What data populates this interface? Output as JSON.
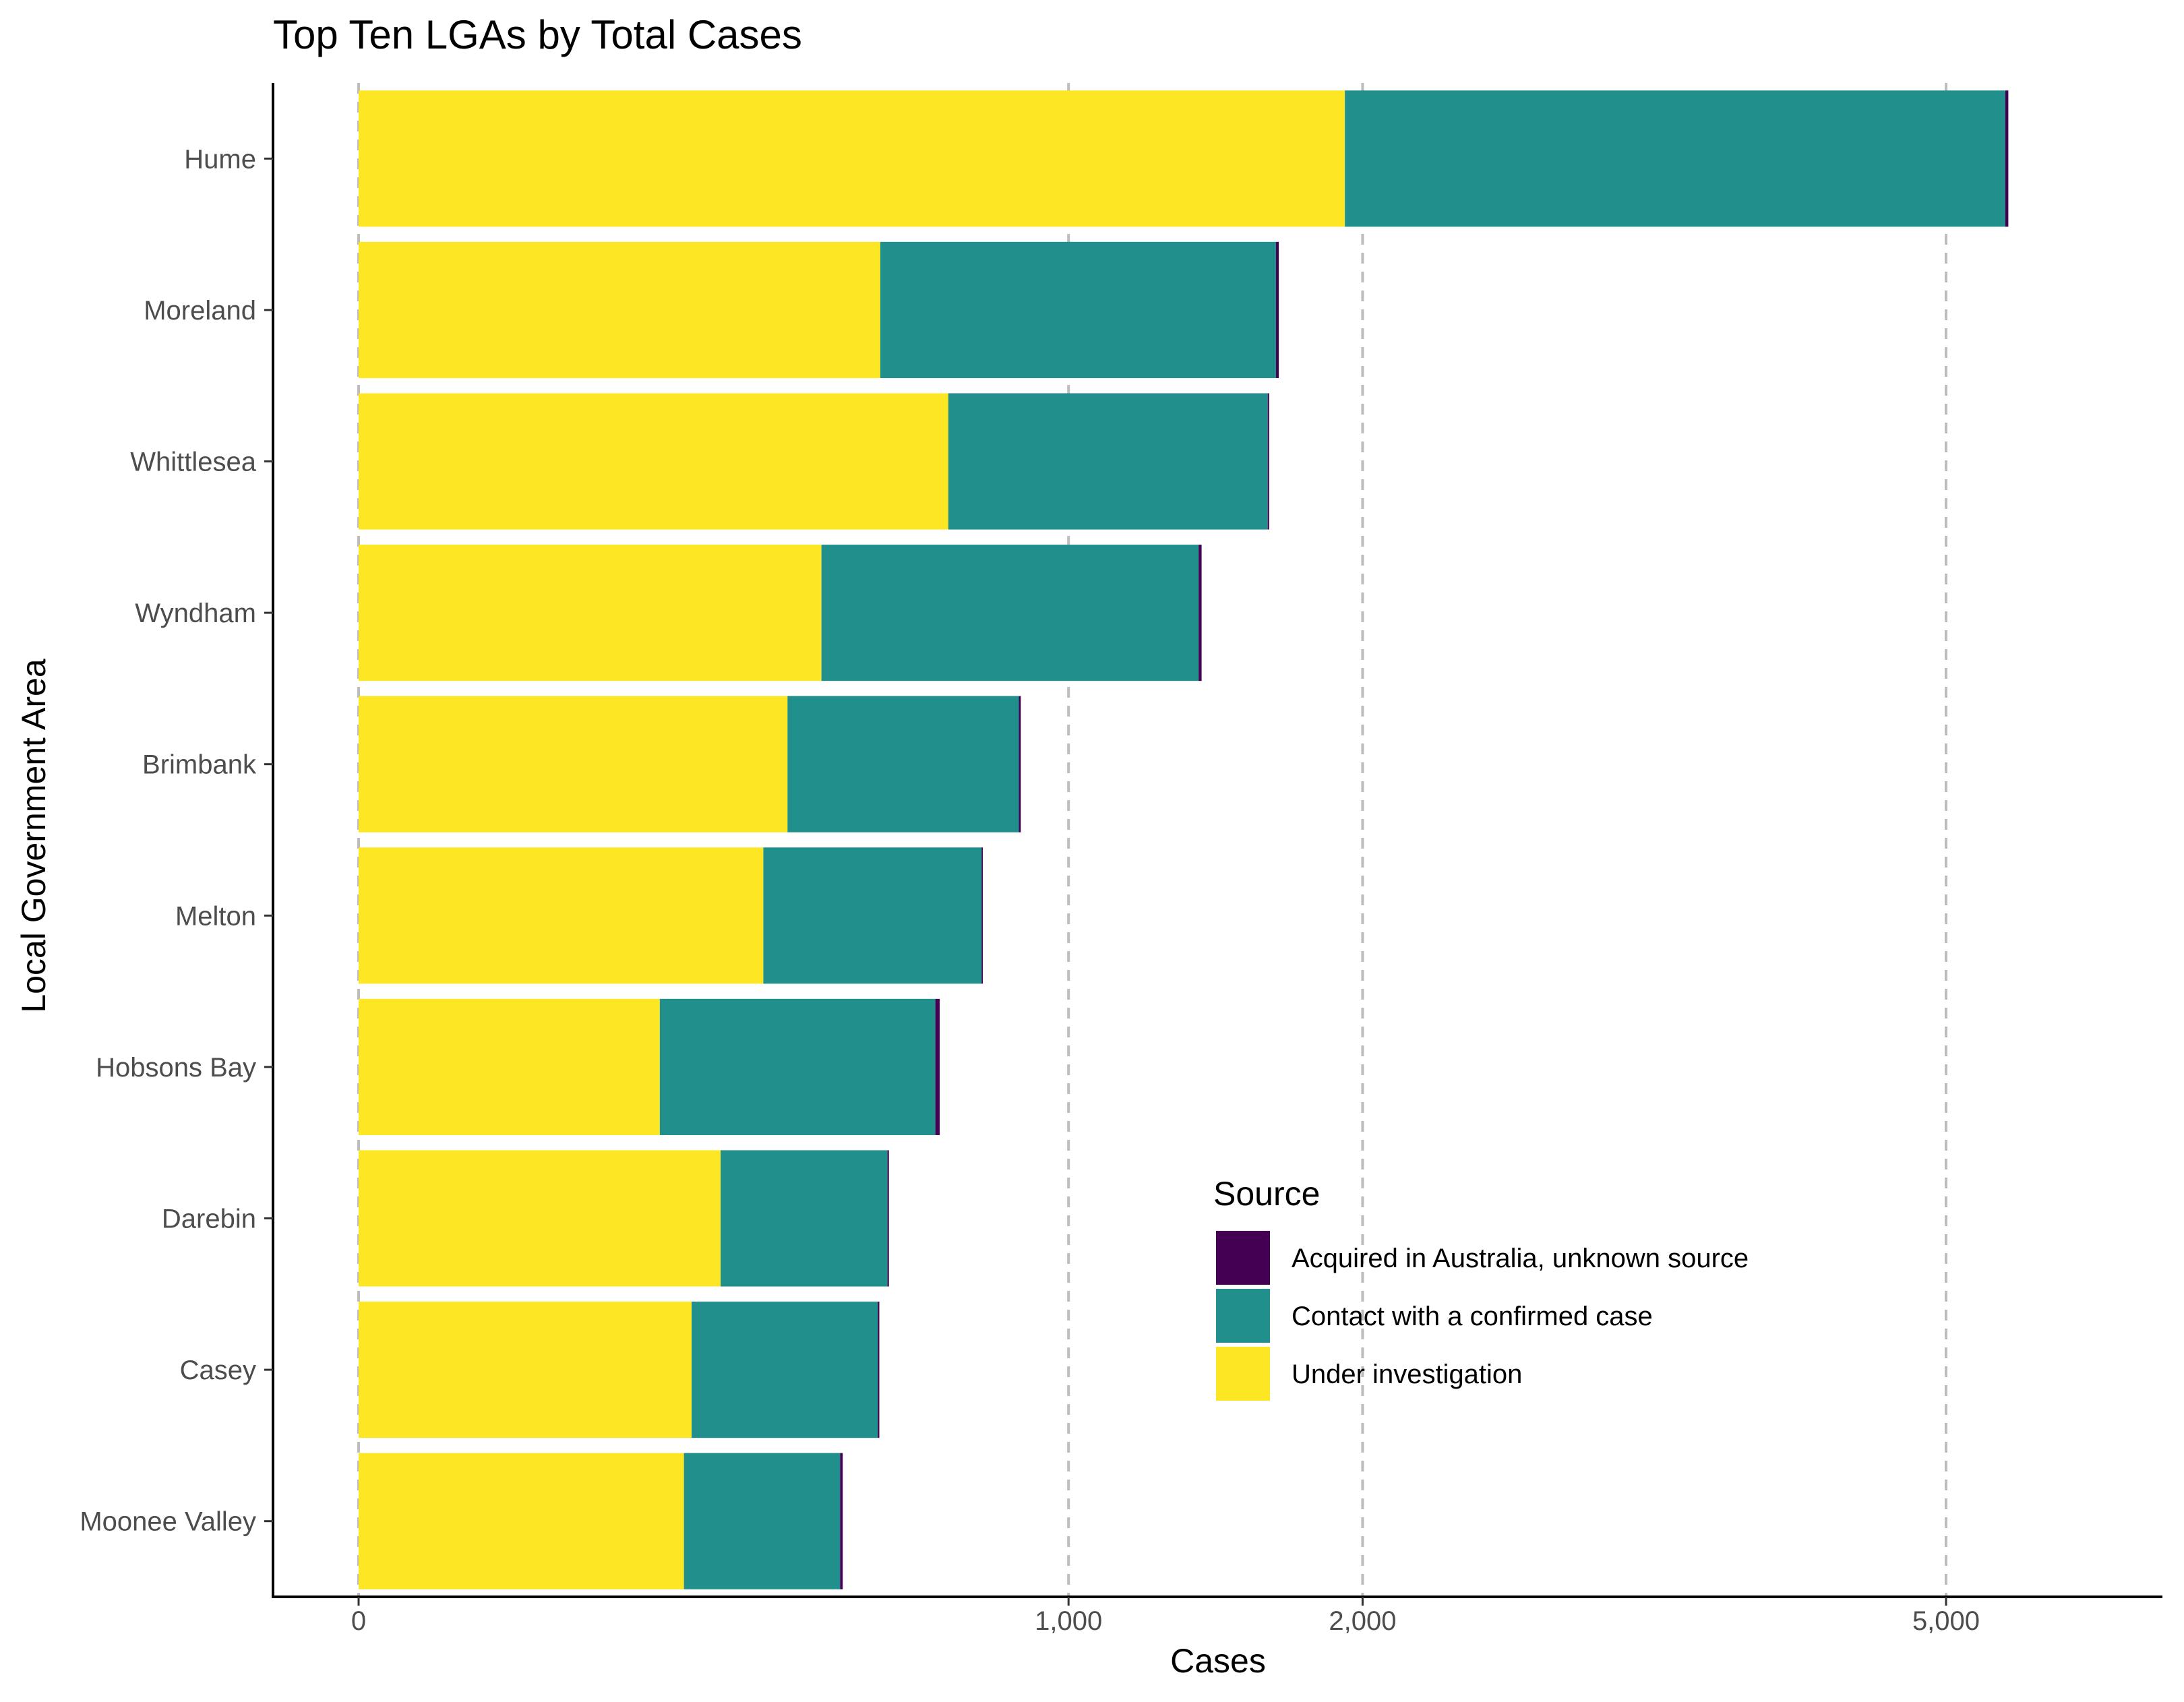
{
  "chart_data": {
    "type": "bar",
    "orientation": "horizontal",
    "stacked": true,
    "title": "Top Ten LGAs by Total Cases",
    "xlabel": "Cases",
    "ylabel": "Local Government Area",
    "x_scale": "sqrt",
    "xlim": [
      0,
      5400
    ],
    "x_ticks": [
      0,
      1000,
      2000,
      5000
    ],
    "x_tick_labels": [
      "0",
      "1,000",
      "2,000",
      "5,000"
    ],
    "grid": "vertical-dashed",
    "legend": {
      "title": "Source",
      "position": "lower-right-inside",
      "entries": [
        "Acquired in Australia, unknown source",
        "Contact with a confirmed case",
        "Under investigation"
      ]
    },
    "categories": [
      "Hume",
      "Moreland",
      "Whittlesea",
      "Wyndham",
      "Brimbank",
      "Melton",
      "Hobsons Bay",
      "Darebin",
      "Casey",
      "Moonee Valley"
    ],
    "series": [
      {
        "name": "Under investigation",
        "color": "#FDE725",
        "values": [
          1930,
          540,
          690,
          425,
          365,
          325,
          180,
          260,
          220,
          210
        ]
      },
      {
        "name": "Contact with a confirmed case",
        "color": "#21908C",
        "values": [
          3450,
          1130,
          950,
          975,
          500,
          445,
          480,
          295,
          315,
          250
        ]
      },
      {
        "name": "Acquired in Australia, unknown source",
        "color": "#440154",
        "values": [
          20,
          10,
          5,
          10,
          5,
          3,
          10,
          3,
          3,
          5
        ]
      }
    ]
  }
}
